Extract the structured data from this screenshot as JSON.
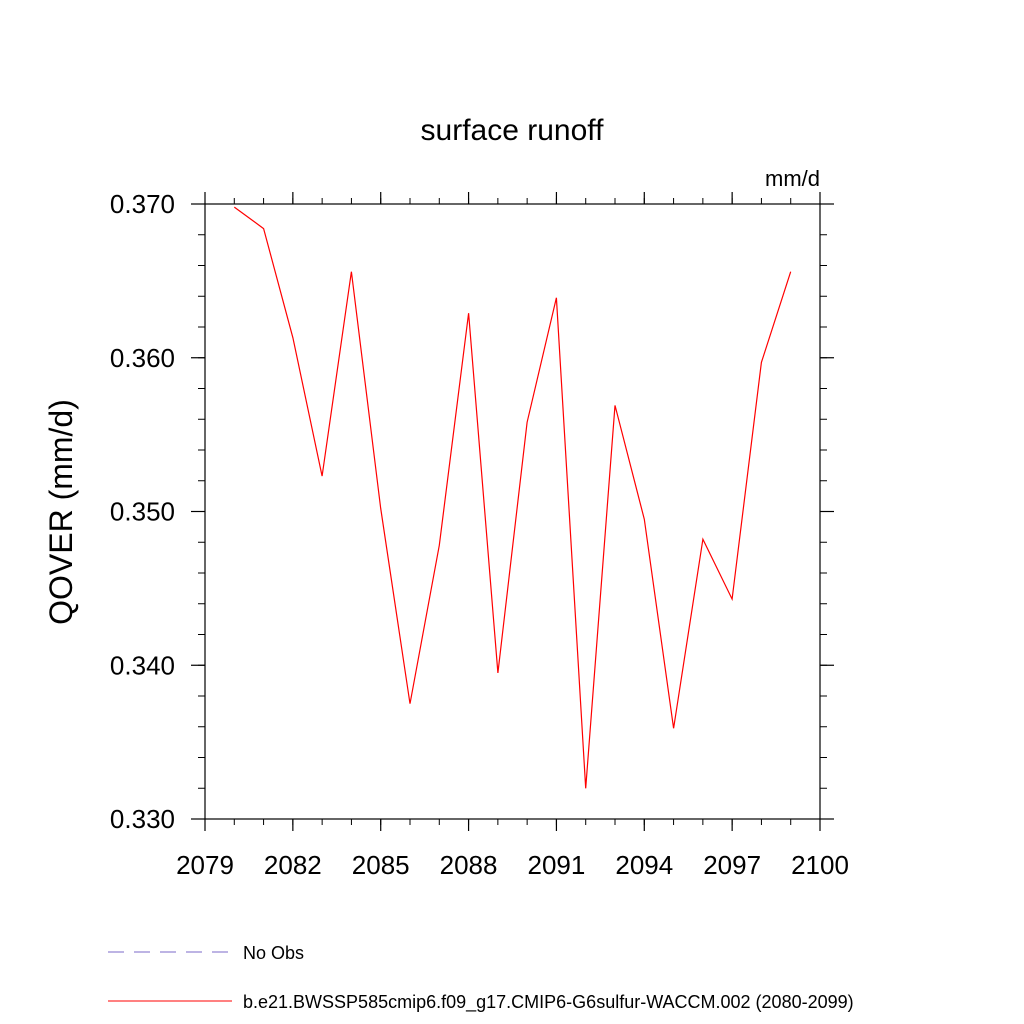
{
  "chart_data": {
    "type": "line",
    "title": "surface runoff",
    "units_label": "mm/d",
    "ylabel": "QOVER  (mm/d)",
    "xlabel": "",
    "xlim": [
      2079,
      2100
    ],
    "ylim": [
      0.33,
      0.37
    ],
    "x_ticks": [
      "2079",
      "2082",
      "2085",
      "2088",
      "2091",
      "2094",
      "2097",
      "2100"
    ],
    "y_ticks": [
      "0.330",
      "0.340",
      "0.350",
      "0.360",
      "0.370"
    ],
    "grid": false,
    "legend_position": "bottom-left",
    "series": [
      {
        "name": "b.e21.BWSSP585cmip6.f09_g17.CMIP6-G6sulfur-WACCM.002 (2080-2099)",
        "color": "#ff0000",
        "dash": "solid",
        "x": [
          2080,
          2081,
          2082,
          2083,
          2084,
          2085,
          2086,
          2087,
          2088,
          2089,
          2090,
          2091,
          2092,
          2093,
          2094,
          2095,
          2096,
          2097,
          2098,
          2099
        ],
        "y": [
          0.3698,
          0.3684,
          0.3613,
          0.3523,
          0.3656,
          0.3502,
          0.3375,
          0.3478,
          0.3629,
          0.3395,
          0.3558,
          0.3639,
          0.332,
          0.3569,
          0.3495,
          0.3359,
          0.3482,
          0.3443,
          0.3597,
          0.3656
        ]
      }
    ],
    "legend": [
      {
        "label": "No Obs",
        "color": "#7b68c8",
        "dash": "dashed"
      },
      {
        "label": "b.e21.BWSSP585cmip6.f09_g17.CMIP6-G6sulfur-WACCM.002 (2080-2099)",
        "color": "#ff0000",
        "dash": "solid"
      }
    ]
  }
}
